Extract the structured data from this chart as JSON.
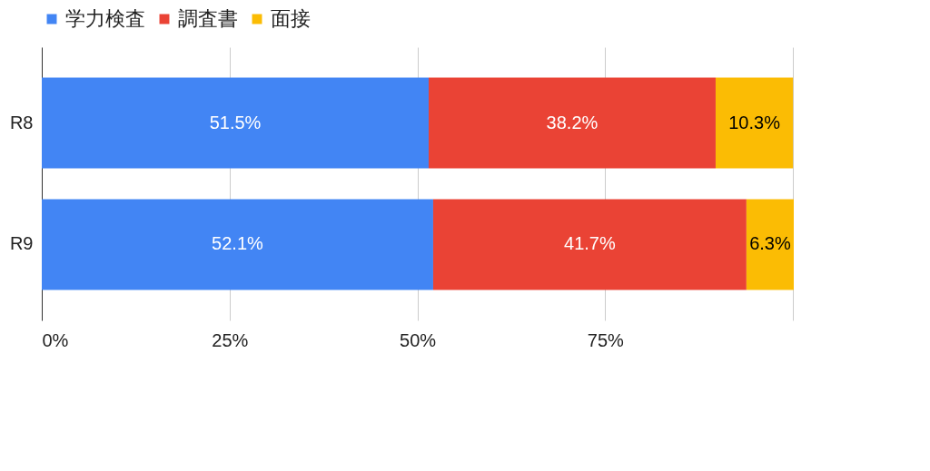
{
  "chart_data": {
    "type": "bar",
    "orientation": "horizontal",
    "stacked": true,
    "categories": [
      "R8",
      "R9"
    ],
    "series": [
      {
        "name": "学力検査",
        "color": "#4285f4",
        "values": [
          51.5,
          52.1
        ],
        "value_labels": [
          "51.5%",
          "52.1%"
        ]
      },
      {
        "name": "調査書",
        "color": "#ea4335",
        "values": [
          38.2,
          41.7
        ],
        "value_labels": [
          "38.2%",
          "41.7%"
        ]
      },
      {
        "name": "面接",
        "color": "#fbbc04",
        "values": [
          10.3,
          6.3
        ],
        "value_labels": [
          "10.3%",
          "6.3%"
        ]
      }
    ],
    "xlim": [
      0,
      100.1
    ],
    "xticks": [
      {
        "value": 0,
        "label": "0%"
      },
      {
        "value": 25,
        "label": "25%"
      },
      {
        "value": 50,
        "label": "50%"
      },
      {
        "value": 75,
        "label": "75%"
      },
      {
        "value": 100,
        "label": null
      }
    ],
    "grid": "x",
    "legend": "top"
  }
}
